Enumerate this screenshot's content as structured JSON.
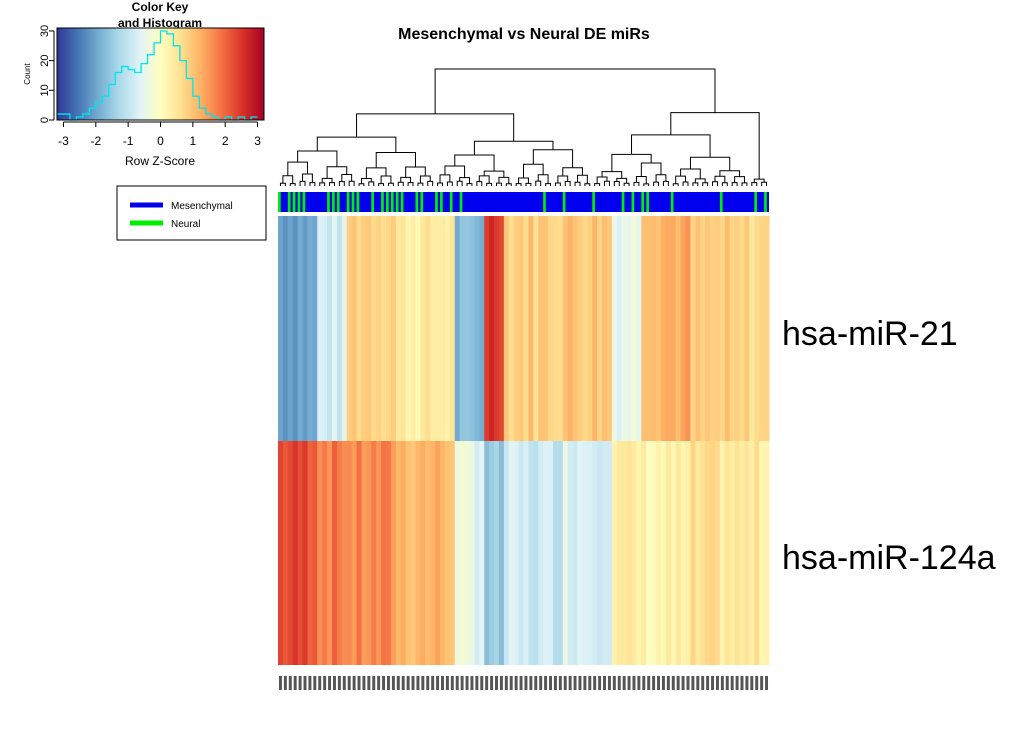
{
  "chart_data": {
    "type": "heatmap",
    "title": "Mesenchymal vs Neural DE miRs",
    "rows": [
      "hsa-miR-21",
      "hsa-miR-124a"
    ],
    "row_labels_shown": [
      "hsa-miR-21",
      "hsa-miR-124a"
    ],
    "color_scale": {
      "label": "Row Z-Score",
      "range": [
        -3.2,
        3.2
      ],
      "ticks": [
        -3,
        -2,
        -1,
        0,
        1,
        2,
        3
      ],
      "colors": [
        "#313695",
        "#4575b4",
        "#74add1",
        "#abd9e9",
        "#e0f3f8",
        "#ffffbf",
        "#fee090",
        "#fdae61",
        "#f46d43",
        "#d73027",
        "#a50026"
      ]
    },
    "color_key": {
      "title_line1": "Color Key",
      "title_line2": "and Histogram",
      "count_label": "Count",
      "count_ticks": [
        0,
        10,
        20,
        30
      ],
      "histogram_line_color": "#00e5ee",
      "histogram_bins": [
        {
          "z": -3.1,
          "count": 2
        },
        {
          "z": -2.9,
          "count": 2
        },
        {
          "z": -2.7,
          "count": 0
        },
        {
          "z": -2.5,
          "count": 1
        },
        {
          "z": -2.3,
          "count": 2
        },
        {
          "z": -2.1,
          "count": 4
        },
        {
          "z": -1.9,
          "count": 6
        },
        {
          "z": -1.7,
          "count": 8
        },
        {
          "z": -1.5,
          "count": 12
        },
        {
          "z": -1.3,
          "count": 16
        },
        {
          "z": -1.1,
          "count": 18
        },
        {
          "z": -0.9,
          "count": 17
        },
        {
          "z": -0.7,
          "count": 16
        },
        {
          "z": -0.5,
          "count": 19
        },
        {
          "z": -0.3,
          "count": 22
        },
        {
          "z": -0.1,
          "count": 26
        },
        {
          "z": 0.1,
          "count": 30
        },
        {
          "z": 0.3,
          "count": 29
        },
        {
          "z": 0.5,
          "count": 25
        },
        {
          "z": 0.7,
          "count": 20
        },
        {
          "z": 0.9,
          "count": 14
        },
        {
          "z": 1.1,
          "count": 8
        },
        {
          "z": 1.3,
          "count": 4
        },
        {
          "z": 1.5,
          "count": 2
        },
        {
          "z": 1.7,
          "count": 1
        },
        {
          "z": 1.9,
          "count": 0
        },
        {
          "z": 2.1,
          "count": 1
        },
        {
          "z": 2.3,
          "count": 0
        },
        {
          "z": 2.5,
          "count": 1
        },
        {
          "z": 2.7,
          "count": 0
        },
        {
          "z": 2.9,
          "count": 1
        }
      ]
    },
    "legend": {
      "placement": "top-left",
      "entries": [
        {
          "name": "Mesenchymal",
          "color": "#0000ee"
        },
        {
          "name": "Neural",
          "color": "#00ee00"
        }
      ]
    },
    "column_groups": {
      "Mesenchymal": "#0000ee",
      "Neural": "#00ee00"
    },
    "column_segments": [
      {
        "n": 8,
        "z_miR21": -2.0,
        "z_miR124a": 2.3
      },
      {
        "n": 6,
        "z_miR21": -0.8,
        "z_miR124a": 1.8
      },
      {
        "n": 10,
        "z_miR21": 0.9,
        "z_miR124a": 1.6
      },
      {
        "n": 12,
        "z_miR21": 0.4,
        "z_miR124a": 1.2
      },
      {
        "n": 6,
        "z_miR21": -1.8,
        "z_miR124a": -0.5
      },
      {
        "n": 4,
        "z_miR21": 2.6,
        "z_miR124a": -1.6
      },
      {
        "n": 12,
        "z_miR21": 0.9,
        "z_miR124a": -0.9
      },
      {
        "n": 10,
        "z_miR21": 1.0,
        "z_miR124a": -0.6
      },
      {
        "n": 6,
        "z_miR21": -0.4,
        "z_miR124a": 0.3
      },
      {
        "n": 10,
        "z_miR21": 1.3,
        "z_miR124a": 0.2
      },
      {
        "n": 8,
        "z_miR21": 0.8,
        "z_miR124a": 0.5
      },
      {
        "n": 8,
        "z_miR21": 0.7,
        "z_miR124a": 0.4
      }
    ],
    "column_labels_present": true
  }
}
